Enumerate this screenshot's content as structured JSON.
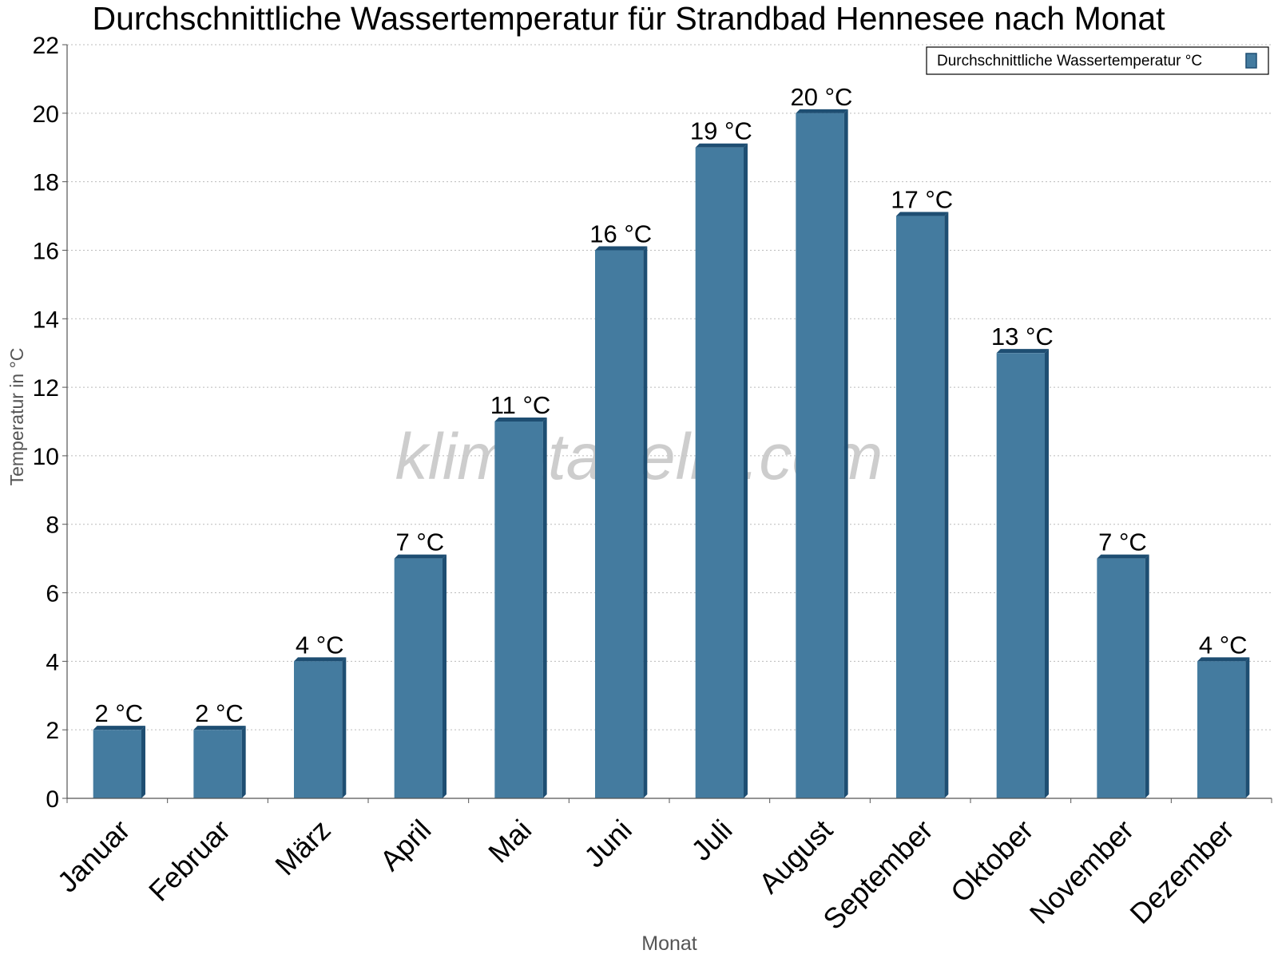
{
  "chart_data": {
    "type": "bar",
    "title": "Durchschnittliche Wassertemperatur für Strandbad Hennesee nach Monat",
    "xlabel": "Monat",
    "ylabel": "Temperatur in °C",
    "categories": [
      "Januar",
      "Februar",
      "März",
      "April",
      "Mai",
      "Juni",
      "Juli",
      "August",
      "September",
      "Oktober",
      "November",
      "Dezember"
    ],
    "series": [
      {
        "name": "Durchschnittliche Wassertemperatur °C",
        "values": [
          2,
          2,
          4,
          7,
          11,
          16,
          19,
          20,
          17,
          13,
          7,
          4
        ],
        "data_labels": [
          "2 °C",
          "2 °C",
          "4 °C",
          "7 °C",
          "11 °C",
          "16 °C",
          "19 °C",
          "20 °C",
          "17 °C",
          "13 °C",
          "7 °C",
          "4 °C"
        ]
      }
    ],
    "ylim": [
      0,
      22
    ],
    "yticks": [
      0,
      2,
      4,
      6,
      8,
      10,
      12,
      14,
      16,
      18,
      20,
      22
    ],
    "grid": true,
    "legend_position": "top-right",
    "watermark": "klimatabelle.com",
    "colors": {
      "bar_face": "#447b9f",
      "bar_side": "#1e4e72",
      "grid": "#bbbbbb",
      "axis": "#555555",
      "axis_label": "#555555",
      "watermark": "#c8c8c8"
    }
  }
}
